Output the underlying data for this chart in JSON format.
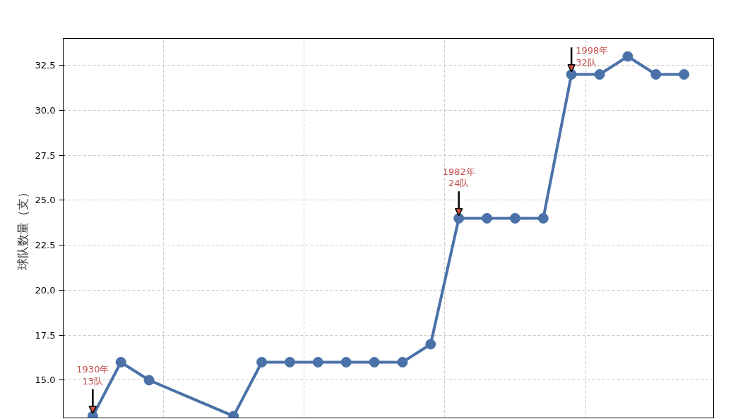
{
  "chart_data": {
    "type": "line",
    "ylabel": "球队数量（支）",
    "categories": [
      null,
      null,
      null,
      null,
      null,
      null,
      null,
      null,
      null,
      null,
      null,
      null,
      null,
      null,
      null,
      null,
      null,
      null,
      null,
      null,
      null,
      null
    ],
    "series": [
      {
        "color": "#4a72a8",
        "values": [
          13,
          16,
          15,
          null,
          null,
          13,
          16,
          16,
          16,
          16,
          16,
          16,
          17,
          24,
          24,
          24,
          24,
          32,
          32,
          33,
          32,
          32
        ]
      }
    ],
    "ylim": [
      12.9,
      34
    ],
    "yticks": [
      {
        "value": 15,
        "label": "15.0"
      },
      {
        "value": 17.5,
        "label": "17.5"
      },
      {
        "value": 20,
        "label": "20.0"
      },
      {
        "value": 22.5,
        "label": "22.5"
      },
      {
        "value": 25,
        "label": "25.0"
      },
      {
        "value": 27.5,
        "label": "27.5"
      },
      {
        "value": 30,
        "label": "30.0"
      },
      {
        "value": 32.5,
        "label": "32.5"
      }
    ],
    "tick_labels": "y",
    "grid": true,
    "marker": "circle",
    "line_style": "solid",
    "annotations": [
      {
        "text": "1930年\n13队",
        "y": 13
      },
      {
        "text": "1982年\n24队",
        "y": 24
      },
      {
        "text": "1998年\n32队",
        "y": 32
      }
    ]
  }
}
